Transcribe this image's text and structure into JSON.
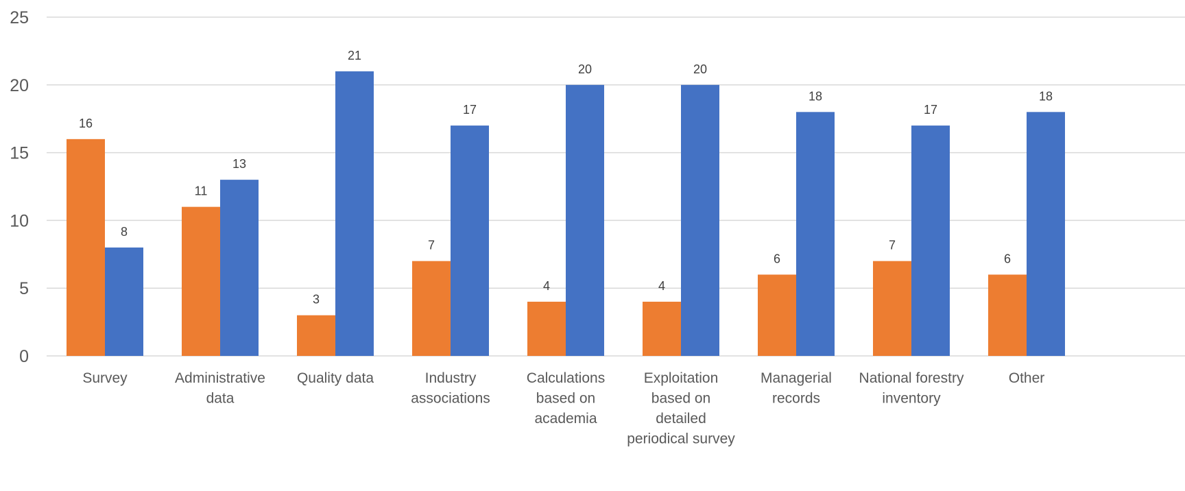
{
  "chart_data": {
    "type": "bar",
    "categories": [
      [
        "Survey"
      ],
      [
        "Administrative",
        "data"
      ],
      [
        "Quality data"
      ],
      [
        "Industry",
        "associations"
      ],
      [
        "Calculations",
        "based on",
        "academia"
      ],
      [
        "Exploitation",
        "based on",
        "detailed",
        "periodical survey"
      ],
      [
        "Managerial",
        "records"
      ],
      [
        "National forestry",
        "inventory"
      ],
      [
        "Other"
      ]
    ],
    "series": [
      {
        "values": [
          16,
          11,
          3,
          7,
          4,
          4,
          6,
          7,
          6
        ],
        "color": "#ED7D31"
      },
      {
        "values": [
          8,
          13,
          21,
          17,
          20,
          20,
          18,
          17,
          18
        ],
        "color": "#4472C4"
      }
    ],
    "yticks": [
      "0",
      "5",
      "10",
      "15",
      "20",
      "25"
    ],
    "ylim": [
      0,
      25
    ],
    "grid": true,
    "legend": false
  }
}
